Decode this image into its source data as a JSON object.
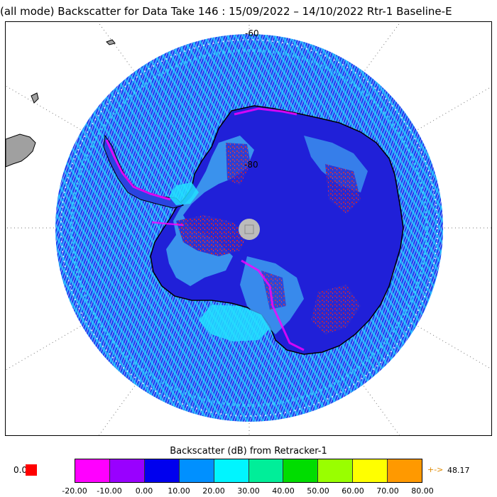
{
  "title": "(all mode) Backscatter for Data Take 146 : 15/09/2022 – 14/10/2022 Rtr-1 Baseline-E",
  "map": {
    "projection": "south-polar-stereographic",
    "lat_labels": [
      "-60",
      "-80"
    ]
  },
  "colorbar": {
    "title": "Backscatter (dB) from Retracker-1",
    "colors": [
      "#ff00ff",
      "#9900ff",
      "#0000ee",
      "#0090ff",
      "#00f5ff",
      "#00ee99",
      "#00dd00",
      "#99ff00",
      "#ffff00",
      "#ff9900"
    ],
    "tick_labels": [
      "-20.00",
      "-10.00",
      "0.00",
      "10.00",
      "20.00",
      "30.00",
      "40.00",
      "50.00",
      "60.00",
      "70.00",
      "80.00"
    ],
    "underflow_value": "0.0",
    "underflow_color": "#ff0000",
    "overflow_symbol": "+->",
    "overflow_value": "48.17",
    "overflow_color": "#e08a00"
  }
}
